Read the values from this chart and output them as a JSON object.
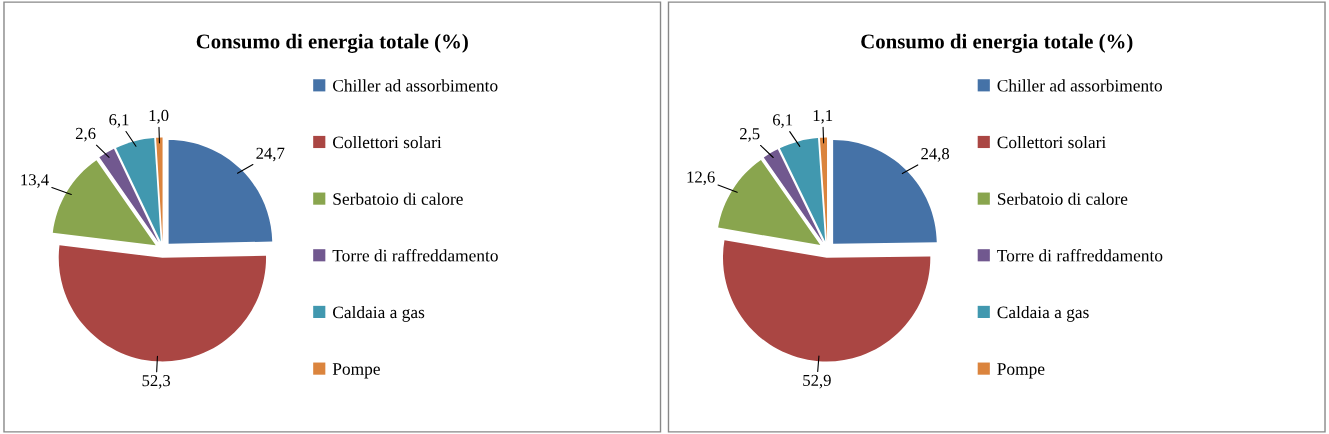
{
  "chart_data": [
    {
      "type": "pie",
      "title": "Consumo di energia totale (%)",
      "categories": [
        "Chiller ad assorbimento",
        "Collettori solari",
        "Serbatoio di calore",
        "Torre di raffreddamento",
        "Caldaia a gas",
        "Pompe"
      ],
      "values": [
        24.7,
        52.3,
        13.4,
        2.6,
        6.1,
        1.0
      ],
      "value_labels": [
        "24,7",
        "52,3",
        "13,4",
        "2,6",
        "6,1",
        "1,0"
      ],
      "colors": [
        "#4572a7",
        "#aa4643",
        "#89a54e",
        "#71588f",
        "#4198af",
        "#db843d"
      ],
      "legend": "right"
    },
    {
      "type": "pie",
      "title": "Consumo di energia totale (%)",
      "categories": [
        "Chiller ad assorbimento",
        "Collettori solari",
        "Serbatoio di calore",
        "Torre di raffreddamento",
        "Caldaia a gas",
        "Pompe"
      ],
      "values": [
        24.8,
        52.9,
        12.6,
        2.5,
        6.1,
        1.1
      ],
      "value_labels": [
        "24,8",
        "52,9",
        "12,6",
        "2,5",
        "6,1",
        "1,1"
      ],
      "colors": [
        "#4572a7",
        "#aa4643",
        "#89a54e",
        "#71588f",
        "#4198af",
        "#db843d"
      ],
      "legend": "right"
    }
  ]
}
